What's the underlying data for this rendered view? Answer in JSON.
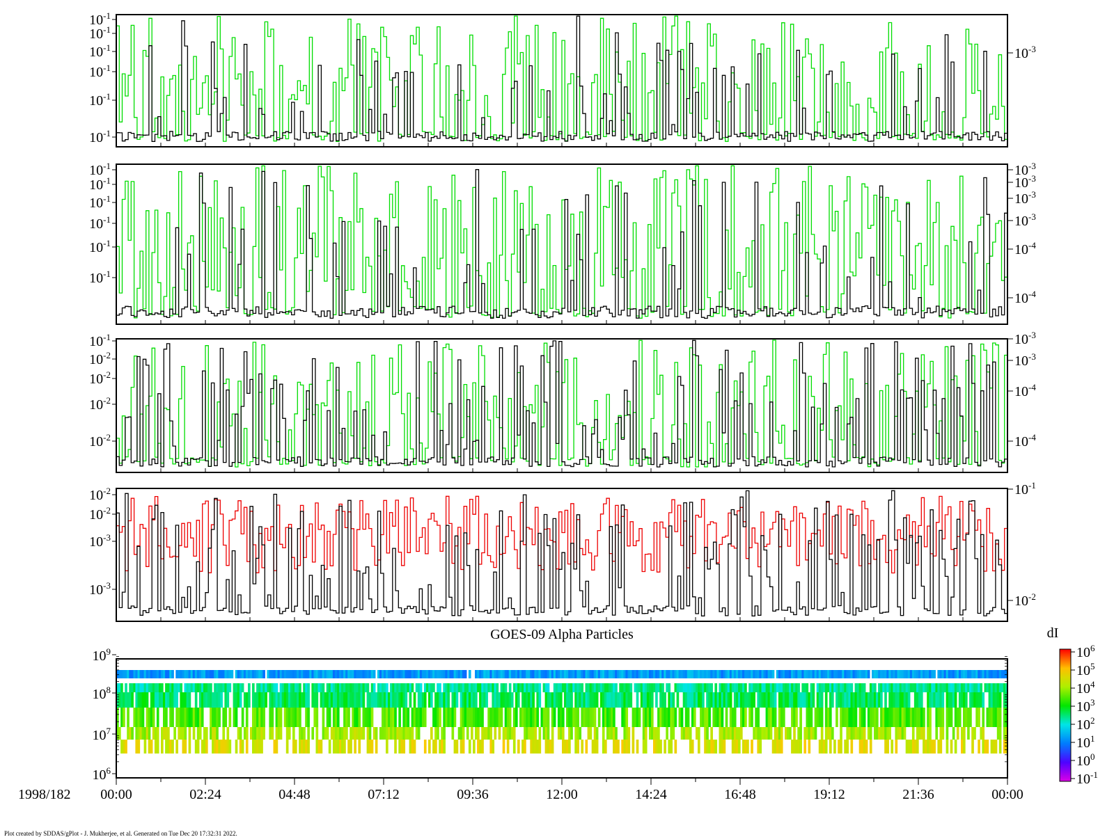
{
  "chart_data": {
    "type": "line",
    "date_label": "1998/182",
    "x_tick_labels": [
      "00:00",
      "02:24",
      "04:48",
      "07:12",
      "09:36",
      "12:00",
      "14:24",
      "16:48",
      "19:12",
      "21:36",
      "00:00"
    ],
    "x_range_hours": [
      0,
      24
    ],
    "colors": {
      "black_series": "#000000",
      "green_series": "#00dd00",
      "red_series": "#ee0000",
      "frame": "#000000"
    },
    "panels": [
      {
        "id": "panel1",
        "left_ticks": [
          "10-1",
          "10-1",
          "10-1",
          "10-1",
          "10-1",
          "10-1"
        ],
        "right_ticks": [
          "10-3"
        ],
        "series": [
          {
            "color": "green",
            "seed": 11,
            "density": 0.62
          },
          {
            "color": "black",
            "seed": 23,
            "density": 0.22
          }
        ]
      },
      {
        "id": "panel2",
        "left_ticks": [
          "10-1",
          "10-1",
          "10-1",
          "10-1",
          "10-1",
          "10-1"
        ],
        "right_ticks": [
          "10-3",
          "10-3",
          "10-3",
          "10-3",
          "10-4",
          "10-4"
        ],
        "series": [
          {
            "color": "green",
            "seed": 37,
            "density": 0.68
          },
          {
            "color": "black",
            "seed": 41,
            "density": 0.2
          }
        ]
      },
      {
        "id": "panel3",
        "left_ticks": [
          "10-1",
          "10-2",
          "10-2",
          "10-2",
          "10-2"
        ],
        "right_ticks": [
          "10-3",
          "10-3",
          "10-4",
          "10-4"
        ],
        "series": [
          {
            "color": "green",
            "seed": 53,
            "density": 0.55
          },
          {
            "color": "black",
            "seed": 61,
            "density": 0.3
          }
        ]
      },
      {
        "id": "panel4",
        "left_ticks": [
          "10-2",
          "10-2",
          "10-3",
          "10-3"
        ],
        "right_ticks": [
          "10-1",
          "10-2"
        ],
        "series": [
          {
            "color": "red",
            "seed": 71,
            "density": 0.75
          },
          {
            "color": "black",
            "seed": 83,
            "density": 0.45
          }
        ]
      }
    ],
    "spectrogram": {
      "title": "GOES-09 Alpha Particles",
      "type": "heatmap",
      "y_ticks": [
        "10^9",
        "10^8",
        "10^7",
        "10^6"
      ],
      "colorbar": {
        "label": "dI",
        "ticks": [
          "10^6",
          "10^5",
          "10^4",
          "10^3",
          "10^2",
          "10^1",
          "10^0",
          "10^-1"
        ]
      },
      "bands": [
        {
          "name": "band1",
          "level": 1.3
        },
        {
          "name": "band2",
          "level": 2.4
        },
        {
          "name": "band3",
          "level": 2.6
        },
        {
          "name": "band4",
          "level": 3.4
        },
        {
          "name": "band5",
          "level": 4.0
        },
        {
          "name": "band6",
          "level": 4.5
        }
      ]
    }
  },
  "footer": "Plot created by SDDAS/gPlot - J. Mukherjee, et al.  Generated on Tue Dec 20 17:32:31 2022."
}
